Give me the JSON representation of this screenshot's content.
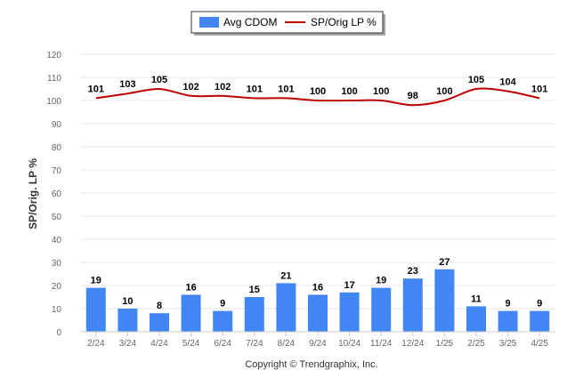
{
  "chart_data": {
    "type": "bar",
    "categories": [
      "2/24",
      "3/24",
      "4/24",
      "5/24",
      "6/24",
      "7/24",
      "8/24",
      "9/24",
      "10/24",
      "11/24",
      "12/24",
      "1/25",
      "2/25",
      "3/25",
      "4/25"
    ],
    "series": [
      {
        "name": "Avg CDOM",
        "type": "bar",
        "color": "#4285f4",
        "values": [
          19,
          10,
          8,
          16,
          9,
          15,
          21,
          16,
          17,
          19,
          23,
          27,
          11,
          9,
          9
        ]
      },
      {
        "name": "SP/Orig LP %",
        "type": "line",
        "color": "#c00000",
        "values": [
          101,
          103,
          105,
          102,
          102,
          101,
          101,
          100,
          100,
          100,
          98,
          100,
          105,
          104,
          101
        ]
      }
    ],
    "ylabel": "SP/Orig. LP %",
    "ylim": [
      0,
      120
    ],
    "yticks": [
      0,
      10,
      20,
      30,
      40,
      50,
      60,
      70,
      80,
      90,
      100,
      110,
      120
    ],
    "grid": true,
    "legend_position": "top-center"
  },
  "footer": "Copyright © Trendgraphix, Inc."
}
